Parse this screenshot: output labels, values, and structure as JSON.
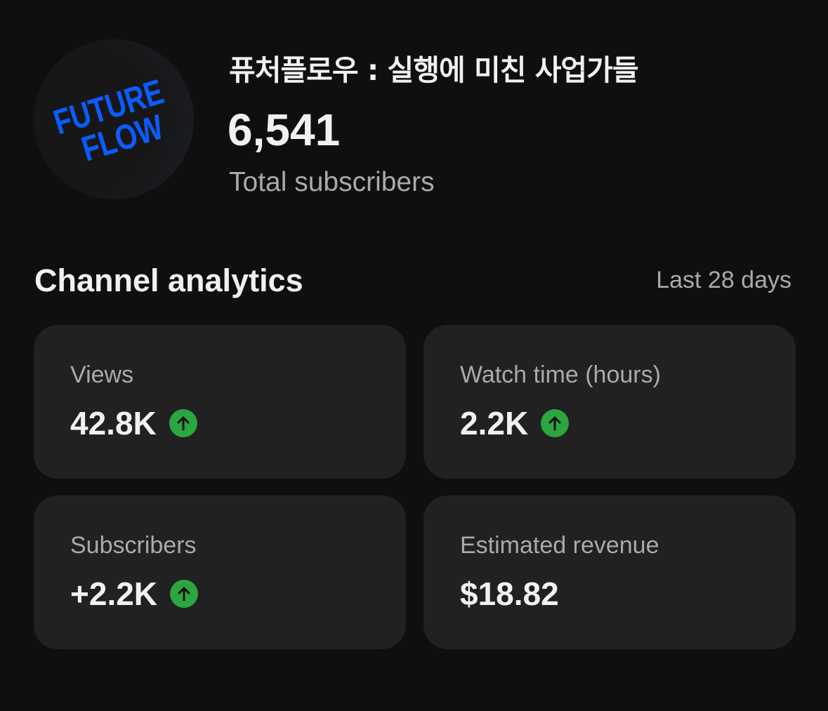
{
  "channel": {
    "logo_text": [
      "FUTURE",
      "FLOW"
    ],
    "name": "퓨처플로우 : 실행에 미친 사업가들",
    "subscriber_count": "6,541",
    "subscriber_label": "Total subscribers"
  },
  "analytics": {
    "title": "Channel analytics",
    "period": "Last 28 days",
    "cards": [
      {
        "label": "Views",
        "value": "42.8K",
        "trend": "up"
      },
      {
        "label": "Watch time (hours)",
        "value": "2.2K",
        "trend": "up"
      },
      {
        "label": "Subscribers",
        "value": "+2.2K",
        "trend": "up"
      },
      {
        "label": "Estimated revenue",
        "value": "$18.82",
        "trend": "none"
      }
    ]
  },
  "colors": {
    "background": "#0f0f0f",
    "card": "#212121",
    "trend_up": "#2ba640",
    "logo": "#0a5cff"
  },
  "icons": {
    "trend_up": "arrow-up-circle-icon"
  }
}
